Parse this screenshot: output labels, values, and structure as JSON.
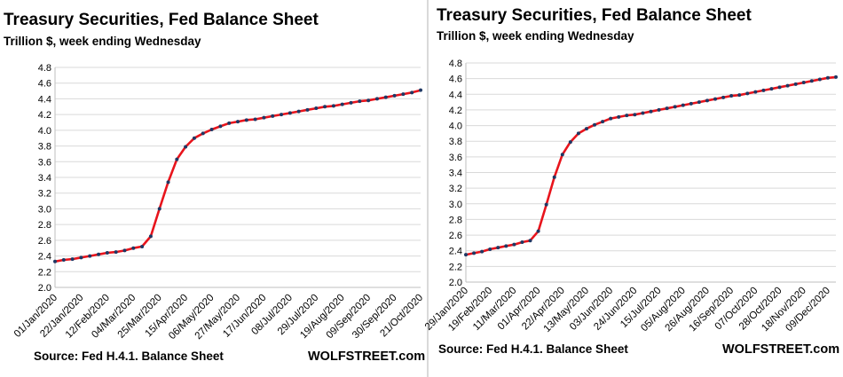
{
  "charts": [
    {
      "title": "Treasury Securities, Fed Balance Sheet",
      "subtitle": "Trillion $, week ending Wednesday",
      "source": "Source: Fed H.4.1. Balance Sheet",
      "brand": "WOLFSTREET.com"
    },
    {
      "title": "Treasury Securities, Fed Balance Sheet",
      "subtitle": "Trillion $, week ending Wednesday",
      "source": "Source: Fed H.4.1. Balance Sheet",
      "brand": "WOLFSTREET.com"
    }
  ],
  "colors": {
    "line": "#e8141c",
    "marker": "#1f3864",
    "grid": "#d9d9d9",
    "axis": "#bfbfbf"
  },
  "chart_data": [
    {
      "type": "line",
      "ylim": [
        2.0,
        4.8
      ],
      "yticks": [
        "2.0",
        "2.2",
        "2.4",
        "2.6",
        "2.8",
        "3.0",
        "3.2",
        "3.4",
        "3.6",
        "3.8",
        "4.0",
        "4.2",
        "4.4",
        "4.6",
        "4.8"
      ],
      "tick_labels": [
        "01/Jan/2020",
        "22/Jan/2020",
        "12/Feb/2020",
        "04/Mar/2020",
        "25/Mar/2020",
        "15/Apr/2020",
        "06/May/2020",
        "27/May/2020",
        "17/Jun/2020",
        "08/Jul/2020",
        "29/Jul/2020",
        "19/Aug/2020",
        "09/Sep/2020",
        "30/Sep/2020",
        "21/Oct/2020"
      ],
      "series": [
        {
          "values": [
            2.33,
            2.35,
            2.36,
            2.38,
            2.4,
            2.42,
            2.44,
            2.45,
            2.47,
            2.5,
            2.52,
            2.65,
            3.0,
            3.34,
            3.63,
            3.79,
            3.9,
            3.96,
            4.01,
            4.05,
            4.09,
            4.11,
            4.13,
            4.14,
            4.16,
            4.18,
            4.2,
            4.22,
            4.24,
            4.26,
            4.28,
            4.3,
            4.31,
            4.33,
            4.35,
            4.37,
            4.38,
            4.4,
            4.42,
            4.44,
            4.46,
            4.48,
            4.51
          ]
        }
      ]
    },
    {
      "type": "line",
      "ylim": [
        2.0,
        4.8
      ],
      "yticks": [
        "2.0",
        "2.2",
        "2.4",
        "2.6",
        "2.8",
        "3.0",
        "3.2",
        "3.4",
        "3.6",
        "3.8",
        "4.0",
        "4.2",
        "4.4",
        "4.6",
        "4.8"
      ],
      "tick_labels": [
        "29/Jan/2020",
        "19/Feb/2020",
        "11/Mar/2020",
        "01/Apr/2020",
        "22/Apr/2020",
        "13/May/2020",
        "03/Jun/2020",
        "24/Jun/2020",
        "15/Jul/2020",
        "05/Aug/2020",
        "26/Aug/2020",
        "16/Sep/2020",
        "07/Oct/2020",
        "28/Oct/2020",
        "18/Nov/2020",
        "09/Dec/2020"
      ],
      "series": [
        {
          "values": [
            2.35,
            2.37,
            2.39,
            2.42,
            2.44,
            2.46,
            2.48,
            2.51,
            2.53,
            2.65,
            2.99,
            3.34,
            3.63,
            3.79,
            3.9,
            3.96,
            4.01,
            4.05,
            4.09,
            4.11,
            4.13,
            4.14,
            4.16,
            4.18,
            4.2,
            4.22,
            4.24,
            4.26,
            4.28,
            4.3,
            4.32,
            4.34,
            4.36,
            4.38,
            4.39,
            4.41,
            4.43,
            4.45,
            4.47,
            4.49,
            4.51,
            4.53,
            4.55,
            4.57,
            4.59,
            4.61,
            4.62
          ]
        }
      ]
    }
  ]
}
